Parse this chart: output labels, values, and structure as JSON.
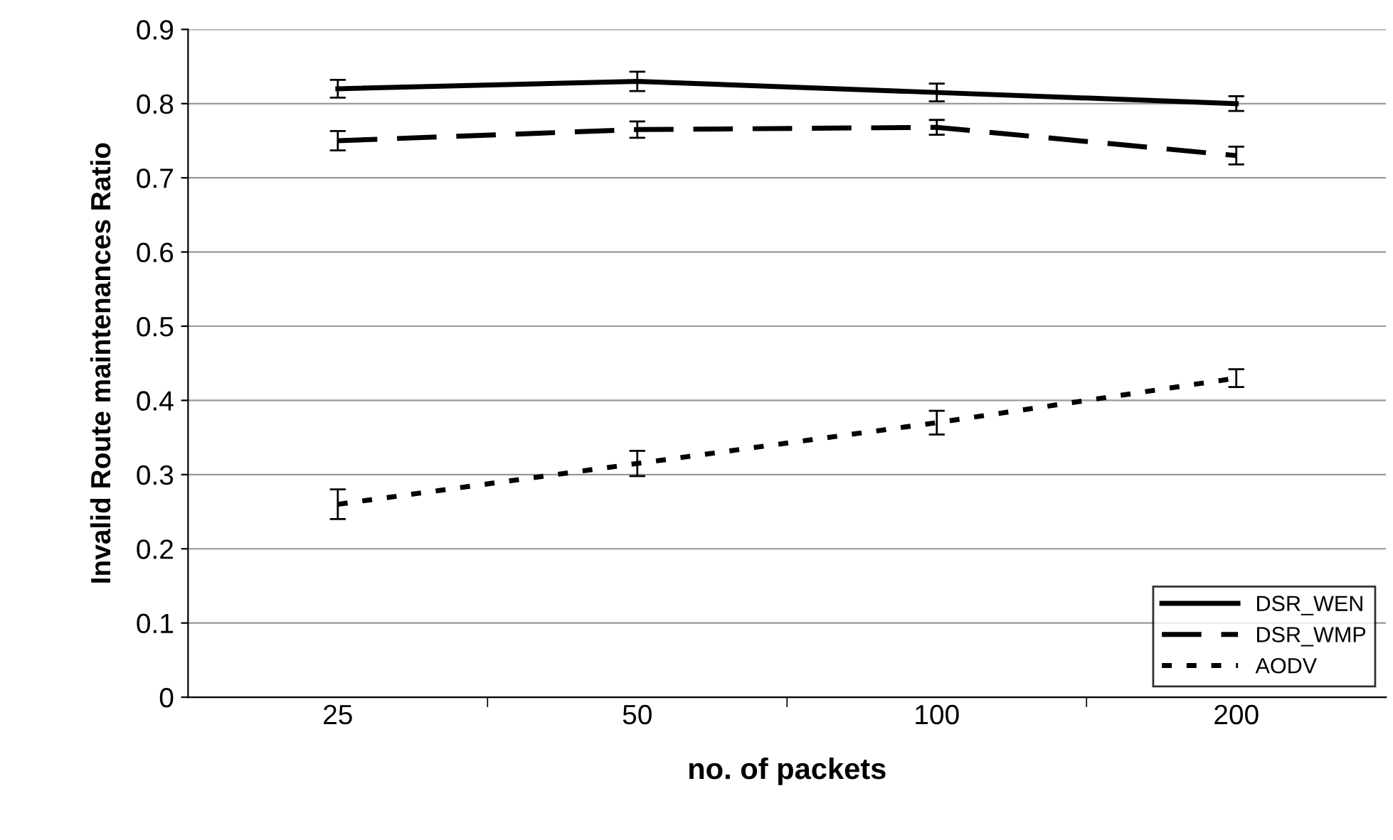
{
  "chart_data": {
    "type": "line",
    "xlabel": "no. of packets",
    "ylabel": "Invalid Route maintenances Ratio",
    "categories": [
      "25",
      "50",
      "100",
      "200"
    ],
    "series": [
      {
        "name": "DSR_WEN",
        "color": "#000000",
        "line_style": "solid",
        "values": [
          0.82,
          0.83,
          0.815,
          0.8
        ],
        "errors": [
          0.012,
          0.013,
          0.012,
          0.01
        ]
      },
      {
        "name": "DSR_WMP",
        "color": "#000000",
        "line_style": "dashed",
        "values": [
          0.75,
          0.765,
          0.768,
          0.73
        ],
        "errors": [
          0.013,
          0.011,
          0.01,
          0.012
        ]
      },
      {
        "name": "AODV",
        "color": "#000000",
        "line_style": "dotted",
        "values": [
          0.26,
          0.315,
          0.37,
          0.43
        ],
        "errors": [
          0.02,
          0.017,
          0.016,
          0.012
        ]
      }
    ],
    "ylim": [
      0,
      0.9
    ],
    "yticks": [
      0,
      0.1,
      0.2,
      0.3,
      0.4,
      0.5,
      0.6,
      0.7,
      0.8,
      0.9
    ],
    "grid": "y",
    "legend": "bottom right",
    "marker": "none"
  }
}
